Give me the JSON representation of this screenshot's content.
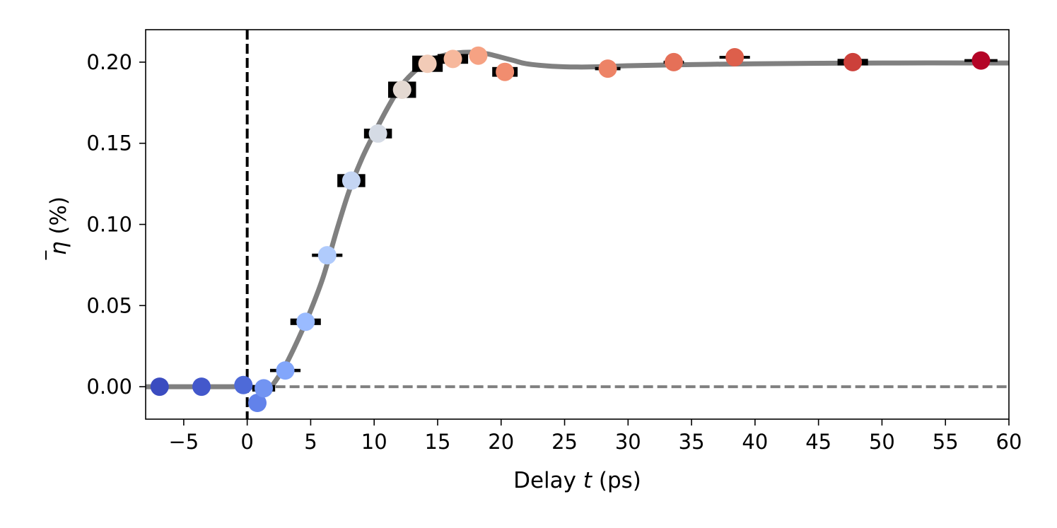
{
  "chart_data": {
    "type": "scatter",
    "xlabel": "Delay t (ps)",
    "xlabel_parts": {
      "prefix": "Delay ",
      "var": "t",
      "suffix": " (ps)"
    },
    "ylabel": "η̅ (%)",
    "ylabel_parts": {
      "var": "η",
      "suffix": " (%)"
    },
    "xlim": [
      -8,
      60
    ],
    "ylim": [
      -0.02,
      0.22
    ],
    "xticks": [
      -5,
      0,
      5,
      10,
      15,
      20,
      25,
      30,
      35,
      40,
      45,
      50,
      55,
      60
    ],
    "xtick_labels": [
      "−5",
      "0",
      "5",
      "10",
      "15",
      "20",
      "25",
      "30",
      "35",
      "40",
      "45",
      "50",
      "55",
      "60"
    ],
    "yticks": [
      0.0,
      0.05,
      0.1,
      0.15,
      0.2
    ],
    "ytick_labels": [
      "0.00",
      "0.05",
      "0.10",
      "0.15",
      "0.20"
    ],
    "grid": false,
    "legend": "none",
    "reference_lines": [
      {
        "orientation": "vertical",
        "value": 0,
        "style": "dashed",
        "color": "#000000"
      },
      {
        "orientation": "horizontal",
        "value": 0,
        "style": "dashed",
        "color": "#808080"
      }
    ],
    "fit_color": "#808080",
    "fit_curve": {
      "x": [
        -8,
        -2,
        0,
        1,
        1.6,
        2,
        3,
        4,
        5,
        6,
        7,
        8,
        9,
        10,
        11,
        12,
        13,
        14,
        15,
        16,
        17,
        18,
        19,
        20,
        21,
        22,
        24,
        26,
        28,
        30,
        35,
        40,
        50,
        60
      ],
      "y": [
        0,
        0,
        0,
        -0.001,
        -0.0015,
        0.001,
        0.013,
        0.029,
        0.047,
        0.068,
        0.095,
        0.12,
        0.14,
        0.156,
        0.171,
        0.184,
        0.193,
        0.199,
        0.203,
        0.205,
        0.206,
        0.206,
        0.205,
        0.203,
        0.201,
        0.199,
        0.1975,
        0.197,
        0.1972,
        0.1978,
        0.1985,
        0.199,
        0.1995,
        0.1995
      ]
    },
    "points": [
      {
        "x": -6.9,
        "y": 0.0,
        "xerr": 0.4,
        "yerr": 0.001,
        "color": "#3b4cc0"
      },
      {
        "x": -3.6,
        "y": 0.0,
        "xerr": 0.6,
        "yerr": 0.001,
        "color": "#4358cb"
      },
      {
        "x": -0.3,
        "y": 0.001,
        "xerr": 0.7,
        "yerr": 0.001,
        "color": "#4e6ad8"
      },
      {
        "x": 0.8,
        "y": -0.01,
        "xerr": 0.3,
        "yerr": 0.0,
        "color": "#6282ea"
      },
      {
        "x": 1.3,
        "y": -0.001,
        "xerr": 0.9,
        "yerr": 0.002,
        "color": "#7294f2"
      },
      {
        "x": 3.0,
        "y": 0.01,
        "xerr": 1.2,
        "yerr": 0.001,
        "color": "#82a6fb"
      },
      {
        "x": 4.6,
        "y": 0.04,
        "xerr": 1.2,
        "yerr": 0.002,
        "color": "#9abbff"
      },
      {
        "x": 6.3,
        "y": 0.081,
        "xerr": 1.2,
        "yerr": 0.001,
        "color": "#b0cbfc"
      },
      {
        "x": 8.2,
        "y": 0.127,
        "xerr": 1.1,
        "yerr": 0.004,
        "color": "#c4d5f3"
      },
      {
        "x": 10.3,
        "y": 0.156,
        "xerr": 1.1,
        "yerr": 0.003,
        "color": "#d5dbe5"
      },
      {
        "x": 12.2,
        "y": 0.183,
        "xerr": 1.1,
        "yerr": 0.005,
        "color": "#e4d9d2"
      },
      {
        "x": 14.2,
        "y": 0.199,
        "xerr": 1.2,
        "yerr": 0.005,
        "color": "#f2cbb7"
      },
      {
        "x": 16.2,
        "y": 0.202,
        "xerr": 1.2,
        "yerr": 0.003,
        "color": "#f7b89c"
      },
      {
        "x": 18.2,
        "y": 0.204,
        "xerr": 0.5,
        "yerr": 0.001,
        "color": "#f6a283"
      },
      {
        "x": 20.3,
        "y": 0.194,
        "xerr": 1.0,
        "yerr": 0.003,
        "color": "#f18d6f"
      },
      {
        "x": 28.4,
        "y": 0.196,
        "xerr": 1.0,
        "yerr": 0.001,
        "color": "#ed8366"
      },
      {
        "x": 33.6,
        "y": 0.2,
        "xerr": 0.8,
        "yerr": 0.0,
        "color": "#e57058"
      },
      {
        "x": 38.4,
        "y": 0.203,
        "xerr": 1.2,
        "yerr": 0.0,
        "color": "#dd5f4b"
      },
      {
        "x": 47.7,
        "y": 0.2,
        "xerr": 1.2,
        "yerr": 0.002,
        "color": "#cc403a"
      },
      {
        "x": 57.8,
        "y": 0.201,
        "xerr": 1.3,
        "yerr": 0.0,
        "color": "#b40426"
      }
    ]
  }
}
